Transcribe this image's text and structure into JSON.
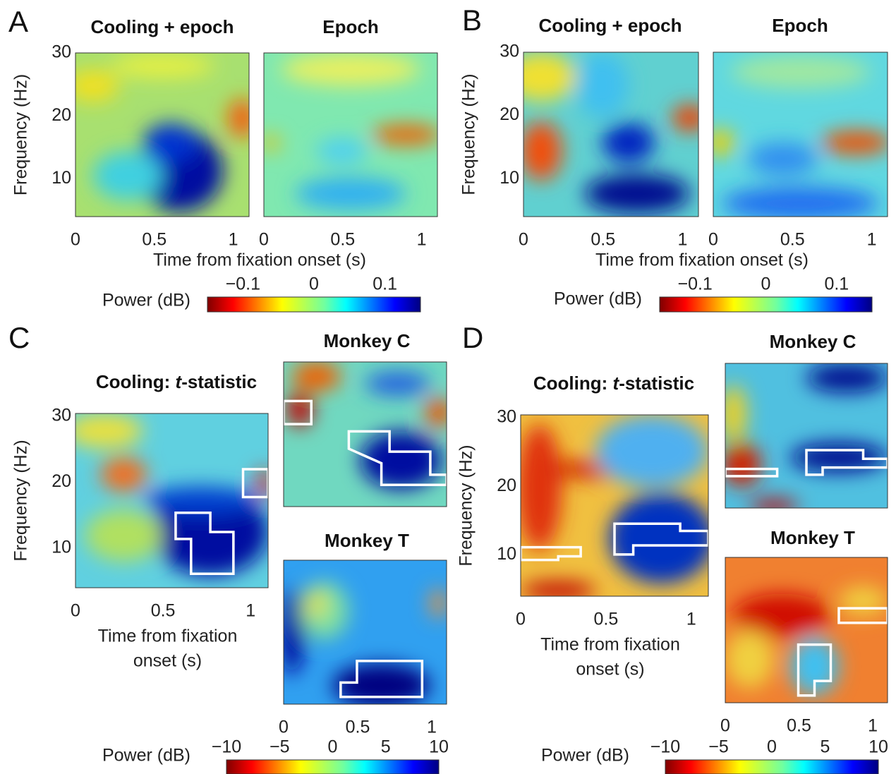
{
  "chart_data": [
    {
      "type": "heatmap",
      "title": "Cooling + epoch",
      "xlim": [
        0,
        1.1
      ],
      "ylim": [
        4,
        30
      ],
      "xticks": [
        0,
        0.5,
        1
      ],
      "yticks": [
        10,
        20,
        30
      ],
      "ylabel": "Frequency (Hz)"
    },
    {
      "type": "heatmap",
      "title": "Epoch",
      "xlim": [
        0,
        1.1
      ],
      "ylim": [
        4,
        30
      ],
      "xticks": [
        0,
        0.5,
        1
      ]
    },
    {
      "type": "heatmap",
      "title": "Cooling + epoch",
      "xlim": [
        0,
        1.1
      ],
      "ylim": [
        4,
        30
      ],
      "xticks": [
        0,
        0.5,
        1
      ],
      "yticks": [
        10,
        20,
        30
      ],
      "ylabel": "Frequency (Hz)"
    },
    {
      "type": "heatmap",
      "title": "Epoch",
      "xlim": [
        0,
        1.1
      ],
      "ylim": [
        4,
        30
      ],
      "xticks": [
        0,
        0.5,
        1
      ]
    },
    {
      "type": "heatmap",
      "title_parts": [
        "Cooling: ",
        "t",
        "-statistic"
      ],
      "xlim": [
        0,
        1.1
      ],
      "ylim": [
        4,
        30.4
      ],
      "xticks": [
        0,
        0.5,
        1
      ],
      "yticks": [
        10,
        20,
        30
      ],
      "ylabel": "Frequency (Hz)",
      "xlabel": [
        "Time from fixation",
        "onset (s)"
      ]
    },
    {
      "type": "heatmap",
      "title": "Monkey C",
      "xlim": [
        0,
        1.1
      ],
      "ylim": [
        4,
        30
      ]
    },
    {
      "type": "heatmap",
      "title": "Monkey T",
      "xlim": [
        0,
        1.1
      ],
      "ylim": [
        4,
        30
      ],
      "xticks": [
        0,
        0.5,
        1
      ]
    },
    {
      "type": "heatmap",
      "title_parts": [
        "Cooling: ",
        "t",
        "-statistic"
      ],
      "xlim": [
        0,
        1.1
      ],
      "ylim": [
        4,
        30.4
      ],
      "xticks": [
        0,
        0.5,
        1
      ],
      "yticks": [
        10,
        20,
        30
      ],
      "ylabel": "Frequency (Hz)",
      "xlabel": [
        "Time from fixation",
        "onset (s)"
      ]
    },
    {
      "type": "heatmap",
      "title": "Monkey C",
      "xlim": [
        0,
        1.1
      ],
      "ylim": [
        4,
        30
      ]
    },
    {
      "type": "heatmap",
      "title": "Monkey T",
      "xlim": [
        0,
        1.1
      ],
      "ylim": [
        4,
        30
      ],
      "xticks": [
        0,
        0.5,
        1
      ]
    }
  ],
  "panels": [
    {
      "letter": "A",
      "xlabel": "Time from fixation onset (s)",
      "colorbar": {
        "label": "Power (dB)",
        "lim": [
          -0.15,
          0.15
        ],
        "ticks": [
          {
            "value": -0.1,
            "label": "−0.1"
          },
          0,
          0.1
        ]
      }
    },
    {
      "letter": "B",
      "xlabel": "Time from fixation onset (s)",
      "colorbar": {
        "label": "Power (dB)",
        "lim": [
          -0.15,
          0.15
        ],
        "ticks": [
          {
            "value": -0.1,
            "label": "−0.1"
          },
          0,
          0.1
        ]
      }
    },
    {
      "letter": "C",
      "colorbar": {
        "label": "Power (dB)",
        "lim": [
          -10,
          10
        ],
        "ticks": [
          {
            "value": -10,
            "label": "−10"
          },
          {
            "value": -5,
            "label": "−5"
          },
          0,
          5,
          10
        ]
      }
    },
    {
      "letter": "D",
      "colorbar": {
        "label": "Power (dB)",
        "lim": [
          -10,
          10
        ],
        "ticks": [
          {
            "value": -10,
            "label": "−10"
          },
          {
            "value": -5,
            "label": "−5"
          },
          0,
          5,
          10
        ]
      }
    }
  ]
}
